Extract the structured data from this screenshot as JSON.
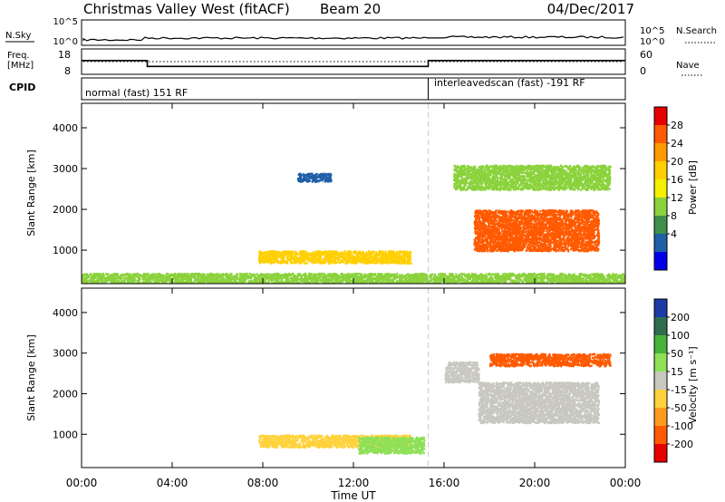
{
  "header": {
    "station": "Christmas Valley West (fitACF)",
    "beam": "Beam 20",
    "date": "04/Dec/2017"
  },
  "noise_panel": {
    "left_label": "N.Sky",
    "right_label": "N.Search",
    "left_ticks": [
      "10^5",
      "10^0"
    ],
    "right_ticks": [
      "10^5",
      "10^0"
    ]
  },
  "freq_panel": {
    "left_label_1": "Freq.",
    "left_label_2": "[MHz]",
    "right_label": "Nave",
    "left_ticks": [
      "18",
      "8"
    ],
    "right_ticks": [
      "60",
      "0"
    ]
  },
  "cpid_panel": {
    "label": "CPID",
    "mode_1": "normal (fast) 151 RF",
    "mode_2": "interleavedscan (fast) -191 RF"
  },
  "power_panel": {
    "ylabel": "Slant Range [km]",
    "colorbar_label": "Power [dB]",
    "colorbar_ticks": [
      "28",
      "24",
      "20",
      "16",
      "12",
      "8",
      "4"
    ],
    "colorbar_colors": [
      "#e60000",
      "#ff5a00",
      "#ff9b00",
      "#ffcf00",
      "#f5f000",
      "#8bd23c",
      "#3f8f4a",
      "#1f5fa6",
      "#0000e8"
    ]
  },
  "velocity_panel": {
    "ylabel": "Slant Range [km]",
    "colorbar_label": "Velocity [m s⁻¹]",
    "colorbar_ticks": [
      "200",
      "100",
      "50",
      "15",
      "-15",
      "-50",
      "-100",
      "-200"
    ],
    "colorbar_colors": [
      "#1a3aa6",
      "#2e6d4d",
      "#47b33b",
      "#8ee056",
      "#c8c8c0",
      "#ffd23c",
      "#ff9a1e",
      "#ff5a00",
      "#e60000"
    ]
  },
  "xaxis": {
    "label": "Time UT",
    "ticks": [
      "00:00",
      "04:00",
      "08:00",
      "12:00",
      "16:00",
      "20:00",
      "00:00"
    ]
  },
  "chart_data": {
    "type": "heatmap",
    "title": "Christmas Valley West (fitACF) Beam 20 04/Dec/2017",
    "xlabel": "Time UT",
    "ylabel": "Slant Range [km]",
    "x_range_hours": [
      0,
      24
    ],
    "y_range_km": [
      180,
      4600
    ],
    "y_ticks_km": [
      1000,
      2000,
      3000,
      4000
    ],
    "mode_change_hour": 15.3,
    "frequency_mhz": [
      {
        "from_hour": 0,
        "to_hour": 2.9,
        "value": 13.5
      },
      {
        "from_hour": 2.9,
        "to_hour": 15.3,
        "value": 10.8
      },
      {
        "from_hour": 15.3,
        "to_hour": 24,
        "value": 13.5
      }
    ],
    "power_db_regions": [
      {
        "hours": [
          7.8,
          14.5
        ],
        "range_km": [
          700,
          1000
        ],
        "power_db": 20
      },
      {
        "hours": [
          17.3,
          22.8
        ],
        "range_km": [
          1000,
          2000
        ],
        "power_db": 28
      },
      {
        "hours": [
          16.4,
          23.3
        ],
        "range_km": [
          2500,
          3100
        ],
        "power_db": 12
      },
      {
        "hours": [
          9.5,
          11.0
        ],
        "range_km": [
          2700,
          2900
        ],
        "power_db": 6
      },
      {
        "hours": [
          0,
          24
        ],
        "range_km": [
          200,
          450
        ],
        "power_db": 12
      }
    ],
    "velocity_regions": [
      {
        "hours": [
          7.8,
          14.5
        ],
        "range_km": [
          700,
          1000
        ],
        "velocity_ms": -30
      },
      {
        "hours": [
          12.2,
          15.1
        ],
        "range_km": [
          550,
          950
        ],
        "velocity_ms": 30
      },
      {
        "hours": [
          17.5,
          22.8
        ],
        "range_km": [
          1300,
          2300
        ],
        "velocity_ms": 0
      },
      {
        "hours": [
          16.0,
          17.5
        ],
        "range_km": [
          2300,
          2800
        ],
        "velocity_ms": 0
      },
      {
        "hours": [
          18.0,
          23.3
        ],
        "range_km": [
          2700,
          3000
        ],
        "velocity_ms": -120
      }
    ]
  }
}
